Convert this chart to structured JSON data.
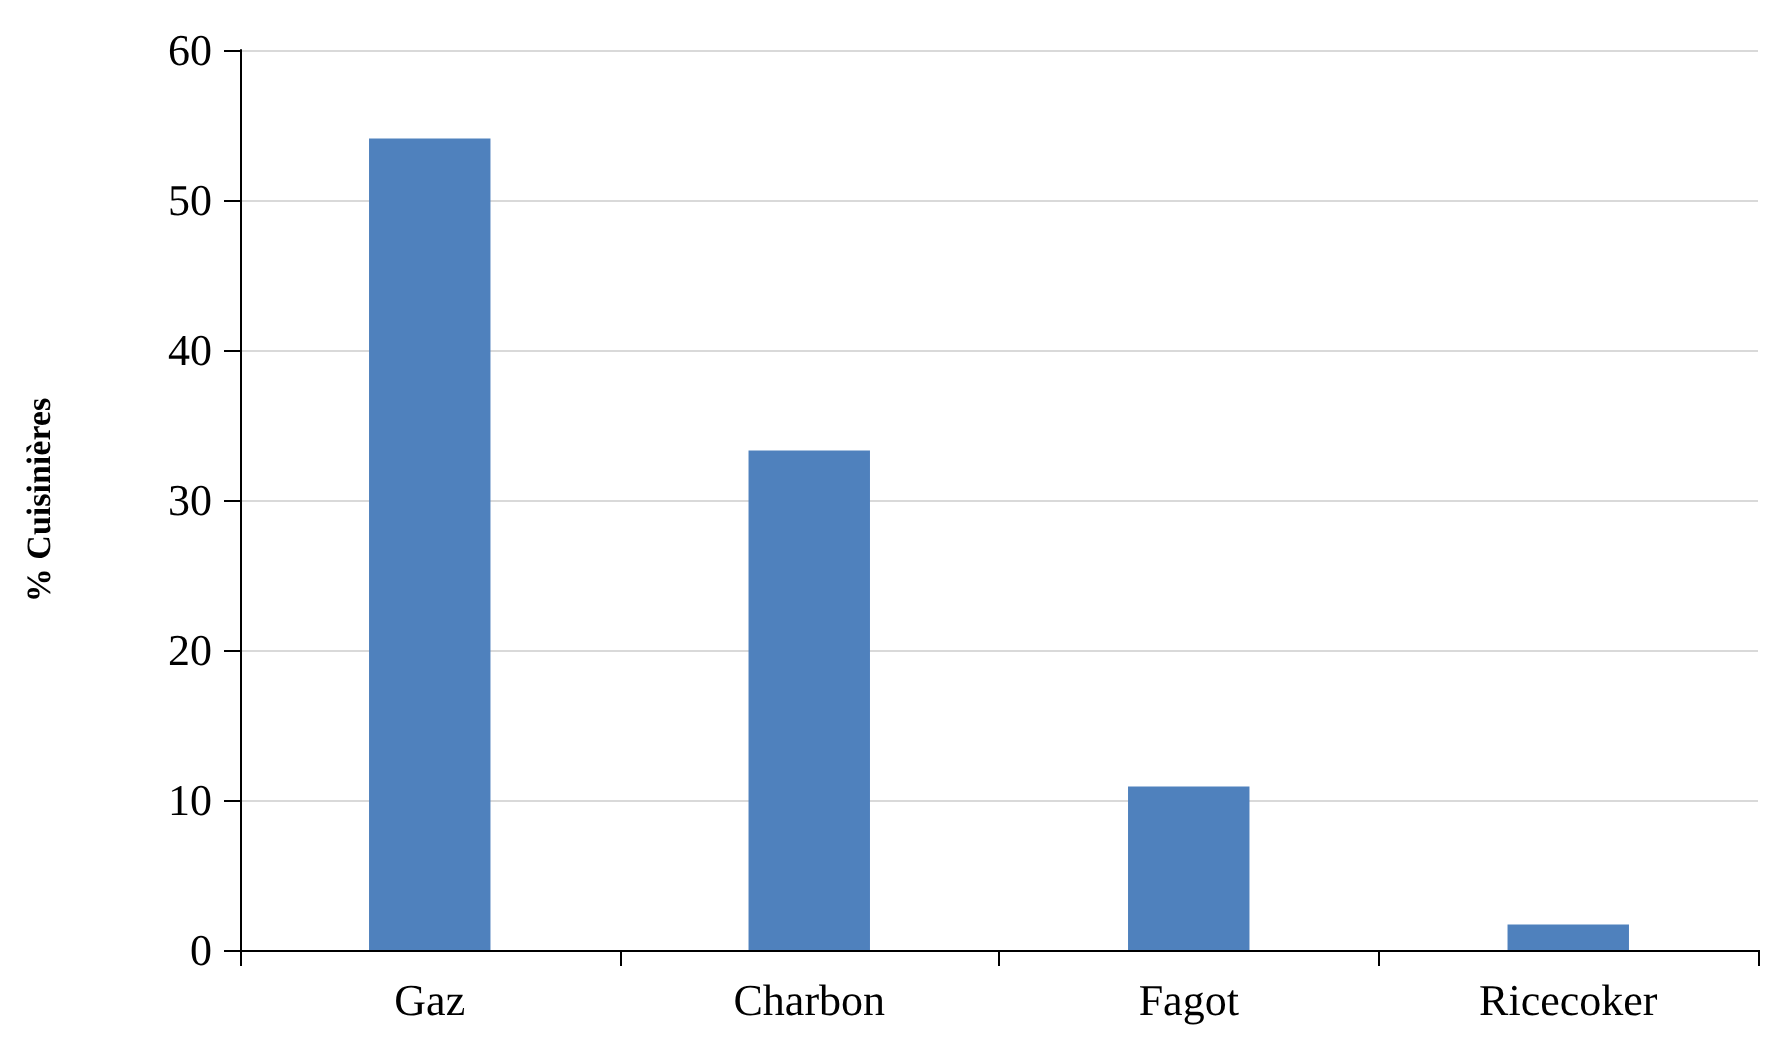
{
  "chart_data": {
    "type": "bar",
    "ylabel": "% Cuisinières",
    "categories": [
      "Gaz",
      "Charbon",
      "Fagot",
      "Ricecoker"
    ],
    "values": [
      54.1,
      33.3,
      10.9,
      1.7
    ],
    "color": "#4f81bd",
    "ylim": [
      0,
      60
    ],
    "yticks": [
      0,
      10,
      20,
      30,
      40,
      50,
      60
    ],
    "grid": "y"
  }
}
